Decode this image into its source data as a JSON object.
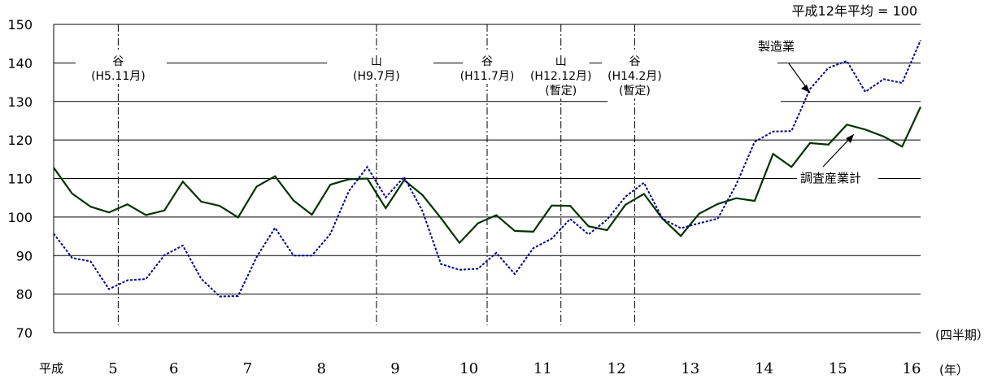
{
  "chart_data": {
    "type": "line",
    "base_note": "平成12年平均 = 100",
    "ylim": [
      70,
      150
    ],
    "yticks": [
      70,
      80,
      90,
      100,
      110,
      120,
      130,
      140,
      150
    ],
    "x_unit_top": "(四半期）",
    "x_unit_bottom": "(年）",
    "era_label": "平成",
    "year_labels": [
      "5",
      "6",
      "7",
      "8",
      "9",
      "10",
      "11",
      "12",
      "13",
      "14",
      "15",
      "16"
    ],
    "x_quarters": [
      "H5Q1",
      "H5Q2",
      "H5Q3",
      "H5Q4",
      "H6Q1",
      "H6Q2",
      "H6Q3",
      "H6Q4",
      "H7Q1",
      "H7Q2",
      "H7Q3",
      "H7Q4",
      "H8Q1",
      "H8Q2",
      "H8Q3",
      "H8Q4",
      "H9Q1",
      "H9Q2",
      "H9Q3",
      "H9Q4",
      "H10Q1",
      "H10Q2",
      "H10Q3",
      "H10Q4",
      "H11Q1",
      "H11Q2",
      "H11Q3",
      "H11Q4",
      "H12Q1",
      "H12Q2",
      "H12Q3",
      "H12Q4",
      "H13Q1",
      "H13Q2",
      "H13Q3",
      "H13Q4",
      "H14Q1",
      "H14Q2",
      "H14Q3",
      "H14Q4",
      "H15Q1",
      "H15Q2",
      "H15Q3",
      "H15Q4",
      "H16Q1",
      "H16Q2",
      "H16Q3",
      "H16Q4"
    ],
    "series": [
      {
        "name": "調査産業計",
        "color": "#003300",
        "style": "solid",
        "values": [
          112.8,
          106.1,
          102.7,
          101.2,
          103.3,
          100.5,
          101.7,
          109.2,
          104.0,
          102.9,
          99.9,
          107.9,
          110.6,
          104.3,
          100.6,
          108.4,
          109.8,
          110.0,
          102.3,
          109.6,
          105.7,
          99.7,
          93.3,
          98.4,
          100.5,
          96.4,
          96.2,
          103.0,
          102.9,
          97.6,
          96.6,
          103.2,
          106.0,
          99.6,
          95.1,
          100.9,
          103.4,
          104.9,
          104.2,
          116.4,
          113.0,
          119.2,
          118.8,
          124.0,
          122.7,
          120.9,
          118.3,
          128.6
        ]
      },
      {
        "name": "製造業",
        "color": "#00008b",
        "style": "dotted",
        "values": [
          95.7,
          89.4,
          88.5,
          81.3,
          83.6,
          83.9,
          90.1,
          92.6,
          84.0,
          79.4,
          79.5,
          89.6,
          97.2,
          90.0,
          90.0,
          95.6,
          106.7,
          113.0,
          105.1,
          110.4,
          101.5,
          87.8,
          86.3,
          86.6,
          90.7,
          85.2,
          91.9,
          94.4,
          99.5,
          95.5,
          99.3,
          105.3,
          108.9,
          99.6,
          97.1,
          98.4,
          99.6,
          108.4,
          119.5,
          122.2,
          122.3,
          133.2,
          138.7,
          140.5,
          132.5,
          135.8,
          134.8,
          145.9
        ]
      }
    ],
    "annotations": [
      {
        "at_quarter": 3.5,
        "lines": [
          "谷",
          "(H5.11月)"
        ]
      },
      {
        "at_quarter": 17.5,
        "lines": [
          "山",
          "(H9.7月)"
        ]
      },
      {
        "at_quarter": 23.5,
        "lines": [
          "谷",
          "(H11.7月)"
        ]
      },
      {
        "at_quarter": 27.5,
        "lines": [
          "山",
          "(H12.12月)",
          "(暫定)"
        ]
      },
      {
        "at_quarter": 31.5,
        "lines": [
          "谷",
          "(H14.2月)",
          "(暫定)"
        ]
      }
    ]
  }
}
